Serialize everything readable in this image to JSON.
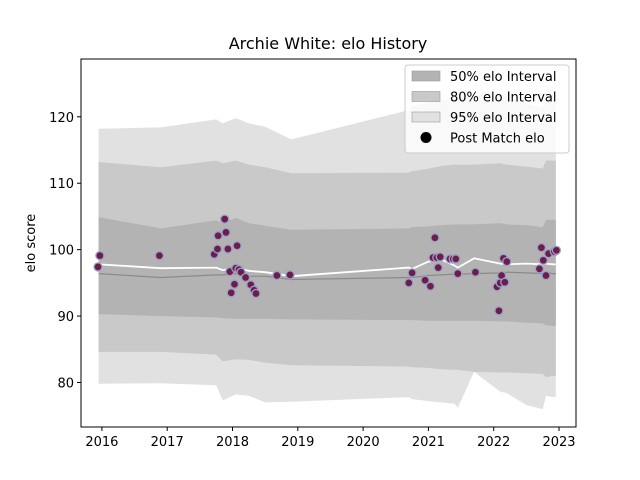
{
  "chart_data": {
    "type": "area",
    "title": "Archie White: elo History",
    "xlabel": "",
    "ylabel": "elo score",
    "xlim": [
      2015.68,
      2023.26
    ],
    "ylim": [
      73.3,
      128.7
    ],
    "xticks": [
      2016,
      2017,
      2018,
      2019,
      2020,
      2021,
      2022,
      2023
    ],
    "xtick_labels": [
      "2016",
      "2017",
      "2018",
      "2019",
      "2020",
      "2021",
      "2022",
      "2023"
    ],
    "yticks": [
      80,
      90,
      100,
      110,
      120
    ],
    "ytick_labels": [
      "80",
      "90",
      "100",
      "110",
      "120"
    ],
    "legend_position": "top-right",
    "legend": [
      {
        "label": "50% elo Interval",
        "kind": "patch",
        "color": "#b3b3b3"
      },
      {
        "label": "80% elo Interval",
        "kind": "patch",
        "color": "#c9c9c9"
      },
      {
        "label": "95% elo Interval",
        "kind": "patch",
        "color": "#e1e1e1"
      },
      {
        "label": "Post Match elo",
        "kind": "marker",
        "color": "#000000"
      }
    ],
    "colors": {
      "band95": "#e1e1e1",
      "band80": "#c9c9c9",
      "band50": "#b3b3b3",
      "mean_line": "#ffffff",
      "median_line": "#8a8a8a",
      "marker_fill": "#6a1f4a",
      "marker_edge": "#9e9ec8"
    },
    "bands": {
      "x": [
        2015.95,
        2016.9,
        2017.75,
        2017.85,
        2018.05,
        2018.25,
        2018.5,
        2018.9,
        2020.7,
        2020.75,
        2021.0,
        2021.2,
        2021.4,
        2021.45,
        2021.7,
        2022.1,
        2022.2,
        2022.5,
        2022.75,
        2022.8,
        2022.9,
        2022.95
      ],
      "p95_hi": [
        118.2,
        118.4,
        119.6,
        119.0,
        119.8,
        119.0,
        118.5,
        116.6,
        121.0,
        121.6,
        122.2,
        122.6,
        122.8,
        122.8,
        123.2,
        123.6,
        123.0,
        122.0,
        121.4,
        124.0,
        124.5,
        124.5
      ],
      "p80_hi": [
        113.2,
        112.4,
        113.4,
        113.0,
        113.4,
        112.8,
        112.4,
        111.5,
        111.6,
        111.8,
        112.2,
        112.6,
        112.8,
        112.8,
        112.8,
        113.0,
        112.8,
        112.5,
        112.2,
        113.4,
        113.4,
        113.4
      ],
      "p50_hi": [
        104.9,
        103.2,
        104.4,
        104.0,
        104.8,
        104.0,
        103.6,
        103.0,
        103.2,
        103.4,
        103.5,
        103.7,
        103.8,
        103.8,
        103.8,
        104.0,
        103.8,
        103.7,
        103.4,
        104.5,
        104.5,
        104.5
      ],
      "mean": [
        97.8,
        97.2,
        97.3,
        96.9,
        97.3,
        96.8,
        96.6,
        96.0,
        97.3,
        97.1,
        98.2,
        98.5,
        97.6,
        97.3,
        98.7,
        97.9,
        97.8,
        97.9,
        97.8,
        97.9,
        97.8,
        97.8
      ],
      "median": [
        96.4,
        95.8,
        96.2,
        96.2,
        96.4,
        96.0,
        96.0,
        95.5,
        95.8,
        95.8,
        96.1,
        96.2,
        96.3,
        96.3,
        96.4,
        96.5,
        96.6,
        96.5,
        96.4,
        96.6,
        96.4,
        96.4
      ],
      "p50_lo": [
        90.3,
        90.0,
        89.8,
        89.7,
        89.6,
        89.6,
        89.6,
        89.5,
        89.4,
        89.4,
        89.3,
        89.3,
        89.3,
        89.3,
        89.3,
        89.2,
        89.2,
        89.0,
        88.9,
        88.6,
        88.5,
        88.5
      ],
      "p80_lo": [
        84.6,
        84.6,
        84.2,
        83.2,
        83.5,
        83.4,
        83.0,
        82.6,
        82.4,
        82.3,
        82.2,
        82.0,
        81.9,
        81.9,
        81.6,
        81.5,
        81.5,
        81.4,
        81.3,
        80.8,
        81.0,
        81.0
      ],
      "p95_lo": [
        79.8,
        79.9,
        79.6,
        77.3,
        78.2,
        78.0,
        77.0,
        77.1,
        77.8,
        77.5,
        77.2,
        77.0,
        76.8,
        76.2,
        81.6,
        78.6,
        78.4,
        76.6,
        76.0,
        78.0,
        77.8,
        77.8
      ]
    },
    "points": [
      {
        "x": 2015.94,
        "y": 97.4
      },
      {
        "x": 2015.97,
        "y": 99.1
      },
      {
        "x": 2016.88,
        "y": 99.1
      },
      {
        "x": 2017.72,
        "y": 99.3
      },
      {
        "x": 2017.77,
        "y": 100.1
      },
      {
        "x": 2017.78,
        "y": 102.1
      },
      {
        "x": 2017.88,
        "y": 104.6
      },
      {
        "x": 2017.9,
        "y": 102.6
      },
      {
        "x": 2017.93,
        "y": 100.1
      },
      {
        "x": 2017.96,
        "y": 96.7
      },
      {
        "x": 2017.98,
        "y": 93.5
      },
      {
        "x": 2018.03,
        "y": 94.8
      },
      {
        "x": 2018.05,
        "y": 97.2
      },
      {
        "x": 2018.07,
        "y": 100.6
      },
      {
        "x": 2018.1,
        "y": 97.0
      },
      {
        "x": 2018.13,
        "y": 96.6
      },
      {
        "x": 2018.2,
        "y": 95.8
      },
      {
        "x": 2018.28,
        "y": 94.7
      },
      {
        "x": 2018.33,
        "y": 93.9
      },
      {
        "x": 2018.36,
        "y": 93.4
      },
      {
        "x": 2018.68,
        "y": 96.1
      },
      {
        "x": 2018.88,
        "y": 96.2
      },
      {
        "x": 2020.7,
        "y": 95.0
      },
      {
        "x": 2020.75,
        "y": 96.5
      },
      {
        "x": 2020.95,
        "y": 95.4
      },
      {
        "x": 2021.03,
        "y": 94.5
      },
      {
        "x": 2021.07,
        "y": 98.8
      },
      {
        "x": 2021.1,
        "y": 101.8
      },
      {
        "x": 2021.13,
        "y": 98.8
      },
      {
        "x": 2021.15,
        "y": 97.3
      },
      {
        "x": 2021.18,
        "y": 98.9
      },
      {
        "x": 2021.33,
        "y": 98.6
      },
      {
        "x": 2021.38,
        "y": 98.6
      },
      {
        "x": 2021.42,
        "y": 98.6
      },
      {
        "x": 2021.45,
        "y": 96.4
      },
      {
        "x": 2021.72,
        "y": 96.6
      },
      {
        "x": 2022.05,
        "y": 94.4
      },
      {
        "x": 2022.08,
        "y": 90.8
      },
      {
        "x": 2022.1,
        "y": 95.0
      },
      {
        "x": 2022.12,
        "y": 96.1
      },
      {
        "x": 2022.15,
        "y": 98.7
      },
      {
        "x": 2022.17,
        "y": 95.1
      },
      {
        "x": 2022.2,
        "y": 98.2
      },
      {
        "x": 2022.7,
        "y": 97.1
      },
      {
        "x": 2022.73,
        "y": 100.3
      },
      {
        "x": 2022.76,
        "y": 98.4
      },
      {
        "x": 2022.8,
        "y": 96.1
      },
      {
        "x": 2022.84,
        "y": 99.4
      },
      {
        "x": 2022.93,
        "y": 99.7
      },
      {
        "x": 2022.96,
        "y": 99.9
      }
    ]
  }
}
